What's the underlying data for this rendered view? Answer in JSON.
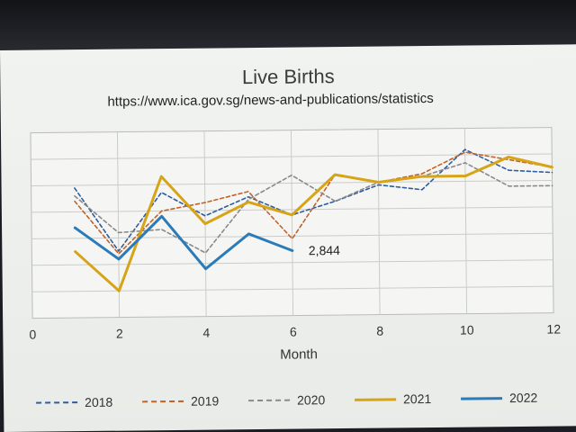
{
  "chart_data": {
    "type": "line",
    "title": "Live Births",
    "subtitle": "https://www.ica.gov.sg/news-and-publications/statistics",
    "xlabel": "Month",
    "ylabel": "",
    "xlim": [
      0,
      12
    ],
    "xticks": [
      0,
      2,
      4,
      6,
      8,
      10,
      12
    ],
    "ylim": [
      0,
      7
    ],
    "grid": true,
    "legend_position": "bottom",
    "annotation": {
      "text": "2,844",
      "x": 6,
      "y": 2.45
    },
    "series": [
      {
        "name": "2018",
        "color": "#2f5d9e",
        "dash": "4,3",
        "width": 1.6,
        "x": [
          1,
          2,
          3,
          4,
          5,
          6,
          7,
          8,
          9,
          10,
          11,
          12
        ],
        "y": [
          4.9,
          2.5,
          4.7,
          3.8,
          4.5,
          3.8,
          4.3,
          4.9,
          4.7,
          6.2,
          5.4,
          5.3
        ]
      },
      {
        "name": "2019",
        "color": "#c0632a",
        "dash": "4,3",
        "width": 1.6,
        "x": [
          1,
          2,
          3,
          4,
          5,
          6,
          7,
          8,
          9,
          10,
          11,
          12
        ],
        "y": [
          4.4,
          2.4,
          4.0,
          4.3,
          4.7,
          2.9,
          5.3,
          5.0,
          5.3,
          6.1,
          5.8,
          5.5
        ]
      },
      {
        "name": "2020",
        "color": "#8a8a8a",
        "dash": "4,3",
        "width": 1.6,
        "x": [
          1,
          2,
          3,
          4,
          5,
          6,
          7,
          8,
          9,
          10,
          11,
          12
        ],
        "y": [
          4.6,
          3.2,
          3.3,
          2.4,
          4.4,
          5.3,
          4.3,
          5.0,
          5.2,
          5.7,
          4.8,
          4.8
        ]
      },
      {
        "name": "2021",
        "color": "#d6a416",
        "dash": "",
        "width": 3,
        "x": [
          1,
          2,
          3,
          4,
          5,
          6,
          7,
          8,
          9,
          10,
          11,
          12
        ],
        "y": [
          2.5,
          1.0,
          5.3,
          3.5,
          4.3,
          3.8,
          5.3,
          5.0,
          5.2,
          5.2,
          5.9,
          5.5
        ]
      },
      {
        "name": "2022",
        "color": "#2b7bb9",
        "dash": "",
        "width": 3,
        "x": [
          1,
          2,
          3,
          4,
          5,
          6
        ],
        "y": [
          3.4,
          2.2,
          3.8,
          1.8,
          3.1,
          2.45
        ]
      }
    ]
  },
  "legend": {
    "items": [
      "2018",
      "2019",
      "2020",
      "2021",
      "2022"
    ]
  }
}
